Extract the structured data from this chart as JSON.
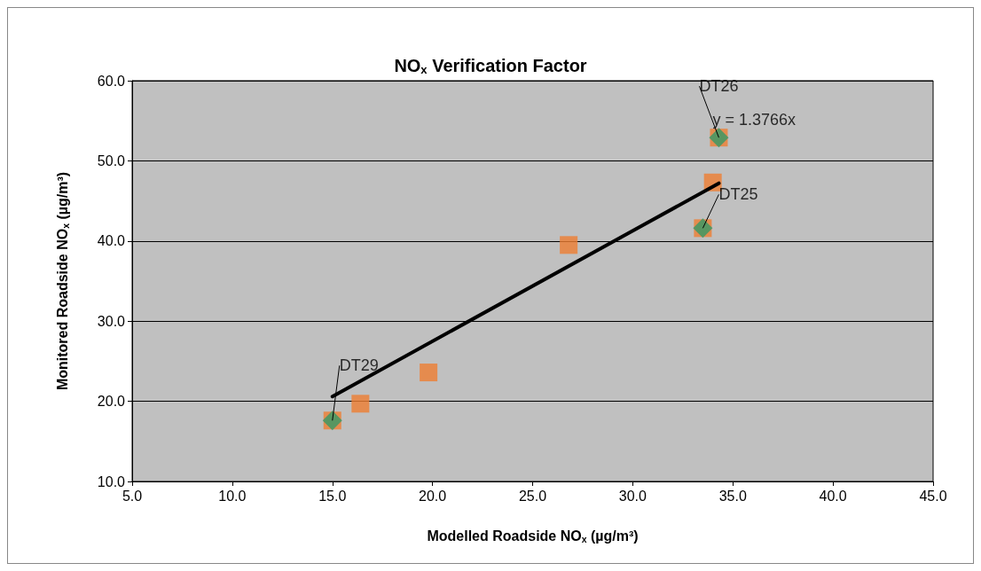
{
  "chart_data": {
    "type": "scatter",
    "title": "NO$_{x}$ Verification Factor",
    "xlabel": "Modelled Roadside NO$_{x}$ (µg/m³)",
    "ylabel": "Monitored Roadside NO$_{x}$ (µg/m³)",
    "xlim": [
      5,
      45
    ],
    "xticks": [
      {
        "value": 5,
        "label": "5.0"
      },
      {
        "value": 10,
        "label": "10.0"
      },
      {
        "value": 15,
        "label": "15.0"
      },
      {
        "value": 20,
        "label": "20.0"
      },
      {
        "value": 25,
        "label": "25.0"
      },
      {
        "value": 30,
        "label": "30.0"
      },
      {
        "value": 35,
        "label": "35.0"
      },
      {
        "value": 40,
        "label": "40.0"
      },
      {
        "value": 45,
        "label": "45.0"
      }
    ],
    "ylim": [
      10,
      60
    ],
    "yticks": [
      {
        "value": 10,
        "label": "10.0"
      },
      {
        "value": 20,
        "label": "20.0"
      },
      {
        "value": 30,
        "label": "30.0"
      },
      {
        "value": 40,
        "label": "40.0"
      },
      {
        "value": 50,
        "label": "50.0"
      },
      {
        "value": 60,
        "label": "60.0"
      }
    ],
    "grid": "y",
    "series": [
      {
        "marker": "square",
        "color": "#ed7d31",
        "x": [
          15.0,
          16.4,
          19.8,
          26.8,
          33.5,
          34.0,
          34.3
        ],
        "values": [
          17.6,
          19.7,
          23.6,
          39.5,
          41.6,
          47.3,
          52.9
        ]
      },
      {
        "marker": "diamond",
        "color": "#339966",
        "x": [
          15.0,
          33.5,
          34.3
        ],
        "values": [
          17.6,
          41.6,
          52.9
        ]
      },
      {
        "type": "line",
        "marker": "none",
        "color": "#000000",
        "x": [
          15.0,
          34.3
        ],
        "values": [
          20.6,
          47.2
        ]
      }
    ],
    "annotations": [
      {
        "text": "DT29",
        "x": 15.0,
        "y": 17.6
      },
      {
        "text": "DT25",
        "x": 33.5,
        "y": 41.6
      },
      {
        "text": "DT26",
        "x": 34.3,
        "y": 52.9
      },
      "y = 1.3766x"
    ]
  }
}
